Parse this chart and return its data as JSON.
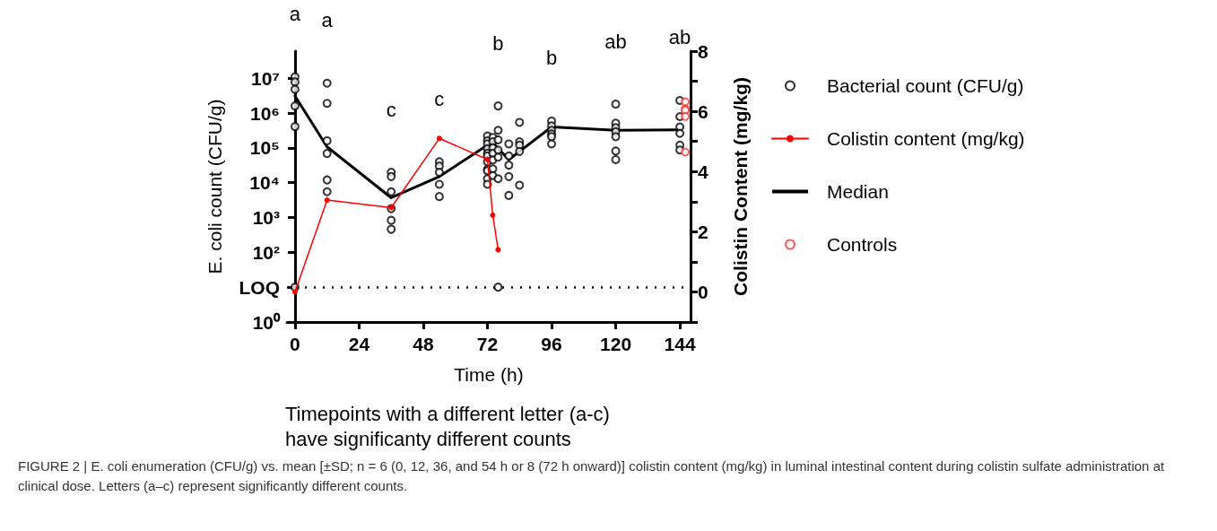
{
  "chart_data": {
    "type": "scatter",
    "xlabel": "Time (h)",
    "ylabel": "E. coli count (CFU/g)",
    "y2label": "Colistin Content (mg/kg)",
    "xlim": [
      -3,
      148
    ],
    "xticks": [
      0,
      24,
      48,
      72,
      96,
      120,
      144
    ],
    "log": "y",
    "ylim": [
      1,
      60000000
    ],
    "yticks": [
      {
        "value": 1,
        "label": "10⁰"
      },
      {
        "value": 10,
        "label": "LOQ"
      },
      {
        "value": 100,
        "label": "10²"
      },
      {
        "value": 1000,
        "label": "10³"
      },
      {
        "value": 10000,
        "label": "10⁴"
      },
      {
        "value": 100000,
        "label": "10⁵"
      },
      {
        "value": 1000000,
        "label": "10⁶"
      },
      {
        "value": 10000000,
        "label": "10⁷"
      }
    ],
    "y2lim": [
      -1,
      8
    ],
    "y2ticks": [
      {
        "value": -1,
        "label": null
      },
      0,
      {
        "value": 1,
        "label": null
      },
      2,
      {
        "value": 3,
        "label": null
      },
      4,
      {
        "value": 5,
        "label": null
      },
      6,
      {
        "value": 7,
        "label": null
      },
      8
    ],
    "grid": false,
    "legend": "right",
    "series": [
      {
        "name": "Bacterial count (CFU/g)",
        "marker": "circle",
        "color": "#000000",
        "x": [
          0,
          0,
          0,
          0,
          0,
          0,
          12,
          12,
          12,
          12,
          12,
          12,
          36,
          36,
          36,
          36,
          36,
          36,
          54,
          54,
          54,
          54,
          54,
          72,
          72,
          72,
          72,
          72,
          72,
          72,
          72,
          72,
          72,
          72,
          74,
          74,
          74,
          74,
          74,
          74,
          74,
          76,
          76,
          76,
          76,
          76,
          76,
          76,
          80,
          80,
          80,
          80,
          80,
          84,
          84,
          84,
          84,
          84,
          96,
          96,
          96,
          96,
          96,
          96,
          120,
          120,
          120,
          120,
          120,
          120,
          120,
          144,
          144,
          144,
          144,
          144,
          144
        ],
        "values": [
          11000000,
          7800000,
          4800000,
          1600000,
          410000,
          10,
          7200000,
          1900000,
          160000,
          69000,
          12000,
          5500,
          20000,
          15000,
          5500,
          1800,
          830,
          460,
          40000,
          30000,
          20000,
          9000,
          4000,
          220000,
          160000,
          130000,
          95000,
          70000,
          59000,
          40000,
          24000,
          22000,
          13000,
          9000,
          200000,
          150000,
          100000,
          70000,
          45000,
          25000,
          16000,
          1600000,
          320000,
          170000,
          87000,
          54000,
          13000,
          10,
          130000,
          59000,
          32000,
          15000,
          4300,
          540000,
          150000,
          120000,
          79000,
          8500,
          590000,
          430000,
          320000,
          250000,
          210000,
          130000,
          1800000,
          510000,
          380000,
          290000,
          210000,
          81000,
          46000,
          2300000,
          790000,
          400000,
          260000,
          120000,
          87000
        ]
      },
      {
        "name": "Colistin content (mg/kg)",
        "type": "line",
        "axis": "y2",
        "marker": "circle",
        "line_style": "solid",
        "color": "#ff0000",
        "x": [
          0,
          12,
          36,
          54,
          72,
          74,
          76
        ],
        "values": [
          0,
          3.05,
          2.8,
          5.1,
          4.4,
          2.55,
          1.4
        ]
      },
      {
        "name": "Median",
        "type": "line",
        "marker": "none",
        "line_style": "solid",
        "color": "#000000",
        "x": [
          0,
          12,
          36,
          54,
          72,
          74,
          80,
          84,
          96,
          120,
          144
        ],
        "values": [
          3100000,
          107000,
          3700,
          15000,
          120000,
          140000,
          46000,
          79000,
          400000,
          320000,
          330000
        ]
      },
      {
        "name": "Controls",
        "marker": "circle",
        "color": "#ff3333",
        "x": [
          146,
          146,
          146,
          146,
          146
        ],
        "values": [
          2100000,
          1300000,
          1200000,
          800000,
          76000
        ]
      }
    ],
    "ref_lines": [
      {
        "axis": "y",
        "value": 10,
        "label": null,
        "line_style": "dotted",
        "color": "#000000"
      }
    ],
    "annotations": [
      {
        "text": "a",
        "x": 0,
        "y": 11000000
      },
      {
        "text": "a",
        "x": 12,
        "y": 7200000
      },
      {
        "text": "c",
        "x": 36,
        "y": 20000
      },
      {
        "text": "c",
        "x": 54,
        "y": 40000
      },
      {
        "text": "b",
        "x": 76,
        "y": 1600000
      },
      {
        "text": "b",
        "x": 96,
        "y": 590000
      },
      {
        "text": "ab",
        "x": 120,
        "y": 1800000
      },
      {
        "text": "ab",
        "x": 144,
        "y": 2300000
      },
      "Timepoints with a different letter (a-c)\nhave significanty different counts",
      "FIGURE 2 | E. coli enumeration (CFU/g) vs. mean [±SD; n = 6 (0, 12, 36, and 54 h or 8 (72 h onward)] colistin content (mg/kg) in luminal intestinal content during colistin sulfate administration at clinical dose. Letters (a–c) represent significantly different counts."
    ]
  }
}
